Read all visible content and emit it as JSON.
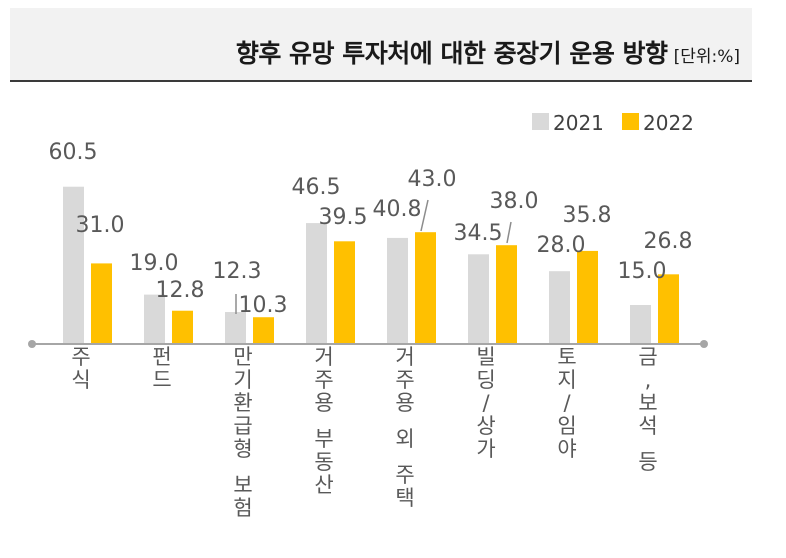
{
  "title": "향후 유망 투자처에 대한 중장기 운용 방향",
  "unit": "[단위:%]",
  "colors": {
    "2021": "#d9d9d9",
    "2022": "#ffc000",
    "axis": "#a6a6a6",
    "label": "#595959"
  },
  "chart_data": {
    "type": "bar",
    "title": "향후 유망 투자처에 대한 중장기 운용 방향",
    "ylabel": "",
    "xlabel": "",
    "ylim": [
      0,
      70
    ],
    "legend": "top-right",
    "grid": false,
    "categories": [
      "주식",
      "펀드",
      "만기환급형 보험",
      "거주용 부동산",
      "거주용 외 주택",
      "빌딩/상가",
      "토지/임야",
      "금,보석 등"
    ],
    "series": [
      {
        "name": "2021",
        "values": [
          60.5,
          19.0,
          12.3,
          46.5,
          40.8,
          34.5,
          28.0,
          15.0
        ]
      },
      {
        "name": "2022",
        "values": [
          31.0,
          12.8,
          10.3,
          39.5,
          43.0,
          38.0,
          35.8,
          26.8
        ]
      }
    ],
    "value_labels_2021": [
      "60.5",
      "19.0",
      "12.3",
      "46.5",
      "40.8",
      "34.5",
      "28.0",
      "15.0"
    ],
    "value_labels_2022": [
      "31.0",
      "12.8",
      "10.3",
      "39.5",
      "43.0",
      "38.0",
      "35.8",
      "26.8"
    ]
  }
}
